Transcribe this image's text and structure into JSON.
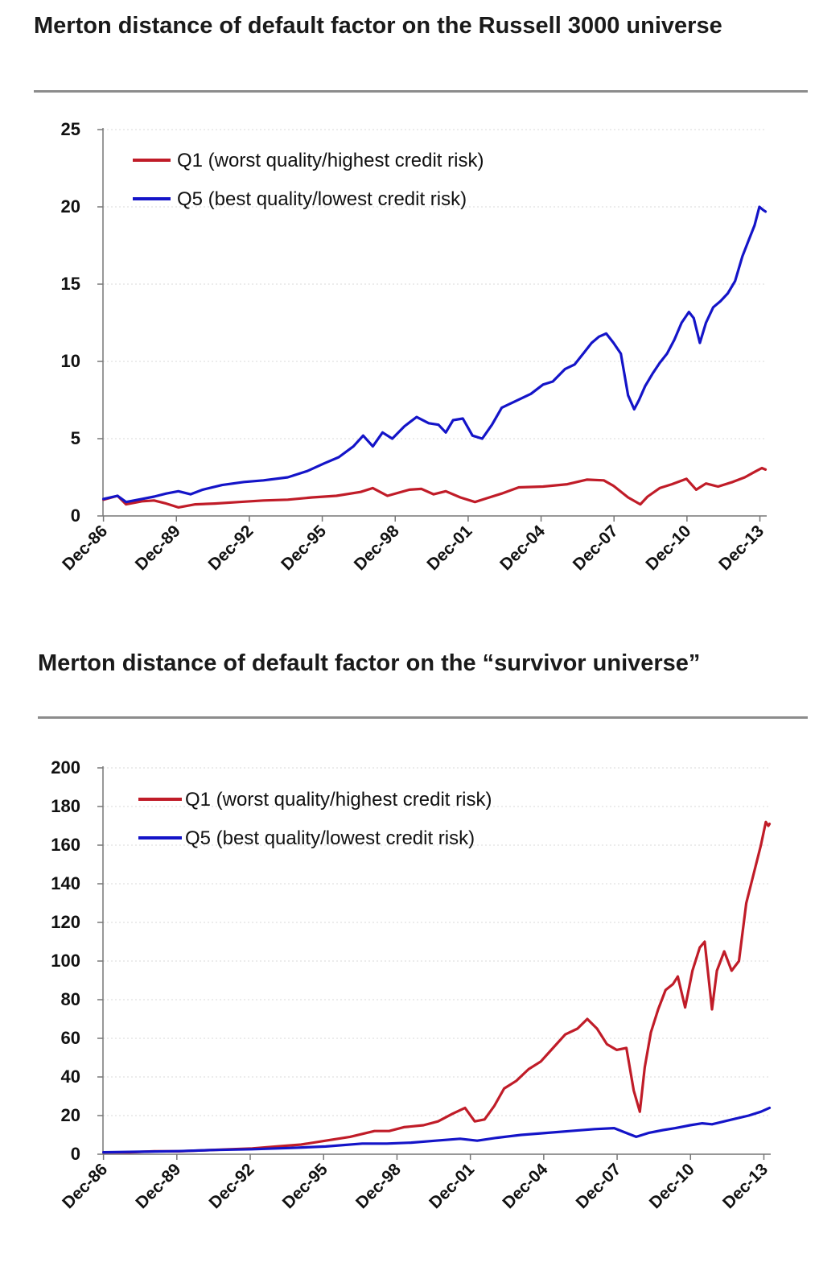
{
  "colors": {
    "q1": "#c01c28",
    "q5": "#1414c8",
    "axis": "#777777",
    "grid": "#d9d9d9"
  },
  "chart_data": [
    {
      "type": "line",
      "title": "Merton distance of default factor on the Russell 3000 universe",
      "xlabel": "",
      "ylabel": "",
      "ylim": [
        0,
        25
      ],
      "xlim": [
        1986.9,
        2014.2
      ],
      "yticks": [
        "0",
        "5",
        "10",
        "15",
        "20",
        "25"
      ],
      "yticks_values": [
        0,
        5,
        10,
        15,
        20,
        25
      ],
      "xticks": [
        "Dec-86",
        "Dec-89",
        "Dec-92",
        "Dec-95",
        "Dec-98",
        "Dec-01",
        "Dec-04",
        "Dec-07",
        "Dec-10",
        "Dec-13"
      ],
      "xticks_values": [
        1986.92,
        1989.92,
        1992.92,
        1995.92,
        1998.92,
        2001.92,
        2004.92,
        2007.92,
        2010.92,
        2013.92
      ],
      "legend_position": "top-left",
      "grid": "horizontal dotted",
      "series": [
        {
          "name": "Q1 (worst quality/highest credit risk)",
          "color_key": "q1",
          "x": [
            1986.92,
            1987.5,
            1987.85,
            1988.5,
            1989.0,
            1989.5,
            1990.0,
            1990.7,
            1991.5,
            1992.5,
            1993.5,
            1994.5,
            1995.5,
            1996.5,
            1997.5,
            1998.0,
            1998.6,
            1999.5,
            2000.0,
            2000.5,
            2001.0,
            2001.6,
            2002.2,
            2002.7,
            2003.3,
            2004.0,
            2005.0,
            2006.0,
            2006.8,
            2007.5,
            2007.9,
            2008.5,
            2009.0,
            2009.3,
            2009.8,
            2010.3,
            2010.9,
            2011.3,
            2011.7,
            2012.2,
            2012.8,
            2013.3,
            2013.7,
            2014.0,
            2014.15
          ],
          "values": [
            1.05,
            1.3,
            0.75,
            0.95,
            1.0,
            0.8,
            0.55,
            0.75,
            0.8,
            0.9,
            1.0,
            1.05,
            1.2,
            1.3,
            1.55,
            1.8,
            1.3,
            1.7,
            1.75,
            1.4,
            1.6,
            1.2,
            0.9,
            1.15,
            1.45,
            1.85,
            1.9,
            2.05,
            2.35,
            2.3,
            1.95,
            1.2,
            0.75,
            1.25,
            1.8,
            2.05,
            2.4,
            1.7,
            2.1,
            1.9,
            2.2,
            2.5,
            2.85,
            3.1,
            3.0
          ]
        },
        {
          "name": "Q5 (best quality/lowest credit risk)",
          "color_key": "q5",
          "x": [
            1986.92,
            1987.5,
            1987.85,
            1988.5,
            1989.0,
            1989.5,
            1990.0,
            1990.5,
            1991.0,
            1991.8,
            1992.7,
            1993.5,
            1994.5,
            1995.3,
            1996.0,
            1996.6,
            1997.2,
            1997.6,
            1998.0,
            1998.4,
            1998.8,
            1999.3,
            1999.8,
            2000.3,
            2000.7,
            2001.0,
            2001.3,
            2001.7,
            2002.1,
            2002.5,
            2002.9,
            2003.3,
            2003.7,
            2004.1,
            2004.5,
            2005.0,
            2005.4,
            2005.9,
            2006.3,
            2006.7,
            2007.0,
            2007.3,
            2007.6,
            2007.9,
            2008.2,
            2008.5,
            2008.75,
            2008.95,
            2009.2,
            2009.5,
            2009.8,
            2010.1,
            2010.4,
            2010.7,
            2011.0,
            2011.2,
            2011.45,
            2011.7,
            2012.0,
            2012.3,
            2012.6,
            2012.9,
            2013.2,
            2013.45,
            2013.7,
            2013.9,
            2014.05,
            2014.15
          ],
          "values": [
            1.1,
            1.3,
            0.9,
            1.1,
            1.25,
            1.45,
            1.6,
            1.4,
            1.7,
            2.0,
            2.2,
            2.3,
            2.5,
            2.9,
            3.4,
            3.8,
            4.5,
            5.2,
            4.5,
            5.4,
            5.0,
            5.8,
            6.4,
            6.0,
            5.9,
            5.4,
            6.2,
            6.3,
            5.2,
            5.0,
            5.9,
            7.0,
            7.3,
            7.6,
            7.9,
            8.5,
            8.7,
            9.5,
            9.8,
            10.6,
            11.2,
            11.6,
            11.8,
            11.2,
            10.5,
            7.8,
            6.9,
            7.5,
            8.4,
            9.2,
            9.9,
            10.5,
            11.4,
            12.5,
            13.2,
            12.8,
            11.2,
            12.5,
            13.5,
            13.9,
            14.4,
            15.2,
            16.8,
            17.8,
            18.8,
            20.0,
            19.8,
            19.7
          ]
        }
      ]
    },
    {
      "type": "line",
      "title": "Merton distance of default factor on the “survivor universe”",
      "xlabel": "",
      "ylabel": "",
      "ylim": [
        0,
        200
      ],
      "xlim": [
        1986.9,
        2014.2
      ],
      "yticks": [
        "0",
        "20",
        "40",
        "60",
        "80",
        "100",
        "120",
        "140",
        "160",
        "180",
        "200"
      ],
      "yticks_values": [
        0,
        20,
        40,
        60,
        80,
        100,
        120,
        140,
        160,
        180,
        200
      ],
      "xticks": [
        "Dec-86",
        "Dec-89",
        "Dec-92",
        "Dec-95",
        "Dec-98",
        "Dec-01",
        "Dec-04",
        "Dec-07",
        "Dec-10",
        "Dec-13"
      ],
      "xticks_values": [
        1986.92,
        1989.92,
        1992.92,
        1995.92,
        1998.92,
        2001.92,
        2004.92,
        2007.92,
        2010.92,
        2013.92
      ],
      "legend_position": "top-left",
      "grid": "horizontal dotted",
      "series": [
        {
          "name": "Q1 (worst quality/highest credit risk)",
          "color_key": "q1",
          "x": [
            1986.92,
            1988.0,
            1989.0,
            1990.0,
            1991.0,
            1992.0,
            1993.0,
            1994.0,
            1995.0,
            1996.0,
            1997.0,
            1998.0,
            1998.6,
            1999.2,
            2000.0,
            2000.6,
            2001.2,
            2001.7,
            2002.1,
            2002.5,
            2002.9,
            2003.3,
            2003.8,
            2004.3,
            2004.8,
            2005.3,
            2005.8,
            2006.3,
            2006.7,
            2007.1,
            2007.5,
            2007.9,
            2008.3,
            2008.6,
            2008.85,
            2009.05,
            2009.3,
            2009.6,
            2009.9,
            2010.2,
            2010.4,
            2010.7,
            2011.0,
            2011.3,
            2011.5,
            2011.8,
            2012.0,
            2012.3,
            2012.6,
            2012.9,
            2013.2,
            2013.5,
            2013.8,
            2014.0,
            2014.1,
            2014.15
          ],
          "values": [
            1,
            1,
            1.5,
            1.5,
            2,
            2.5,
            3,
            4,
            5,
            7,
            9,
            12,
            12,
            14,
            15,
            17,
            21,
            24,
            17,
            18,
            25,
            34,
            38,
            44,
            48,
            55,
            62,
            65,
            70,
            65,
            57,
            54,
            55,
            33,
            22,
            45,
            63,
            75,
            85,
            88,
            92,
            76,
            95,
            107,
            110,
            75,
            95,
            105,
            95,
            100,
            130,
            145,
            160,
            172,
            170,
            171
          ]
        },
        {
          "name": "Q5 (best quality/lowest credit risk)",
          "color_key": "q5",
          "x": [
            1986.92,
            1988.5,
            1990.0,
            1991.5,
            1993.0,
            1994.5,
            1996.0,
            1997.5,
            1998.5,
            1999.5,
            2000.5,
            2001.5,
            2002.2,
            2003.0,
            2004.0,
            2005.0,
            2006.0,
            2007.0,
            2007.8,
            2008.3,
            2008.7,
            2009.2,
            2009.8,
            2010.3,
            2010.9,
            2011.4,
            2011.8,
            2012.3,
            2012.8,
            2013.3,
            2013.8,
            2014.15
          ],
          "values": [
            1,
            1.3,
            1.6,
            2.2,
            2.6,
            3.2,
            4,
            5.5,
            5.5,
            6,
            7,
            8,
            7,
            8.5,
            10,
            11,
            12,
            13,
            13.5,
            11,
            9,
            11,
            12.5,
            13.5,
            15,
            16,
            15.5,
            17,
            18.5,
            20,
            22,
            24
          ]
        }
      ]
    }
  ]
}
